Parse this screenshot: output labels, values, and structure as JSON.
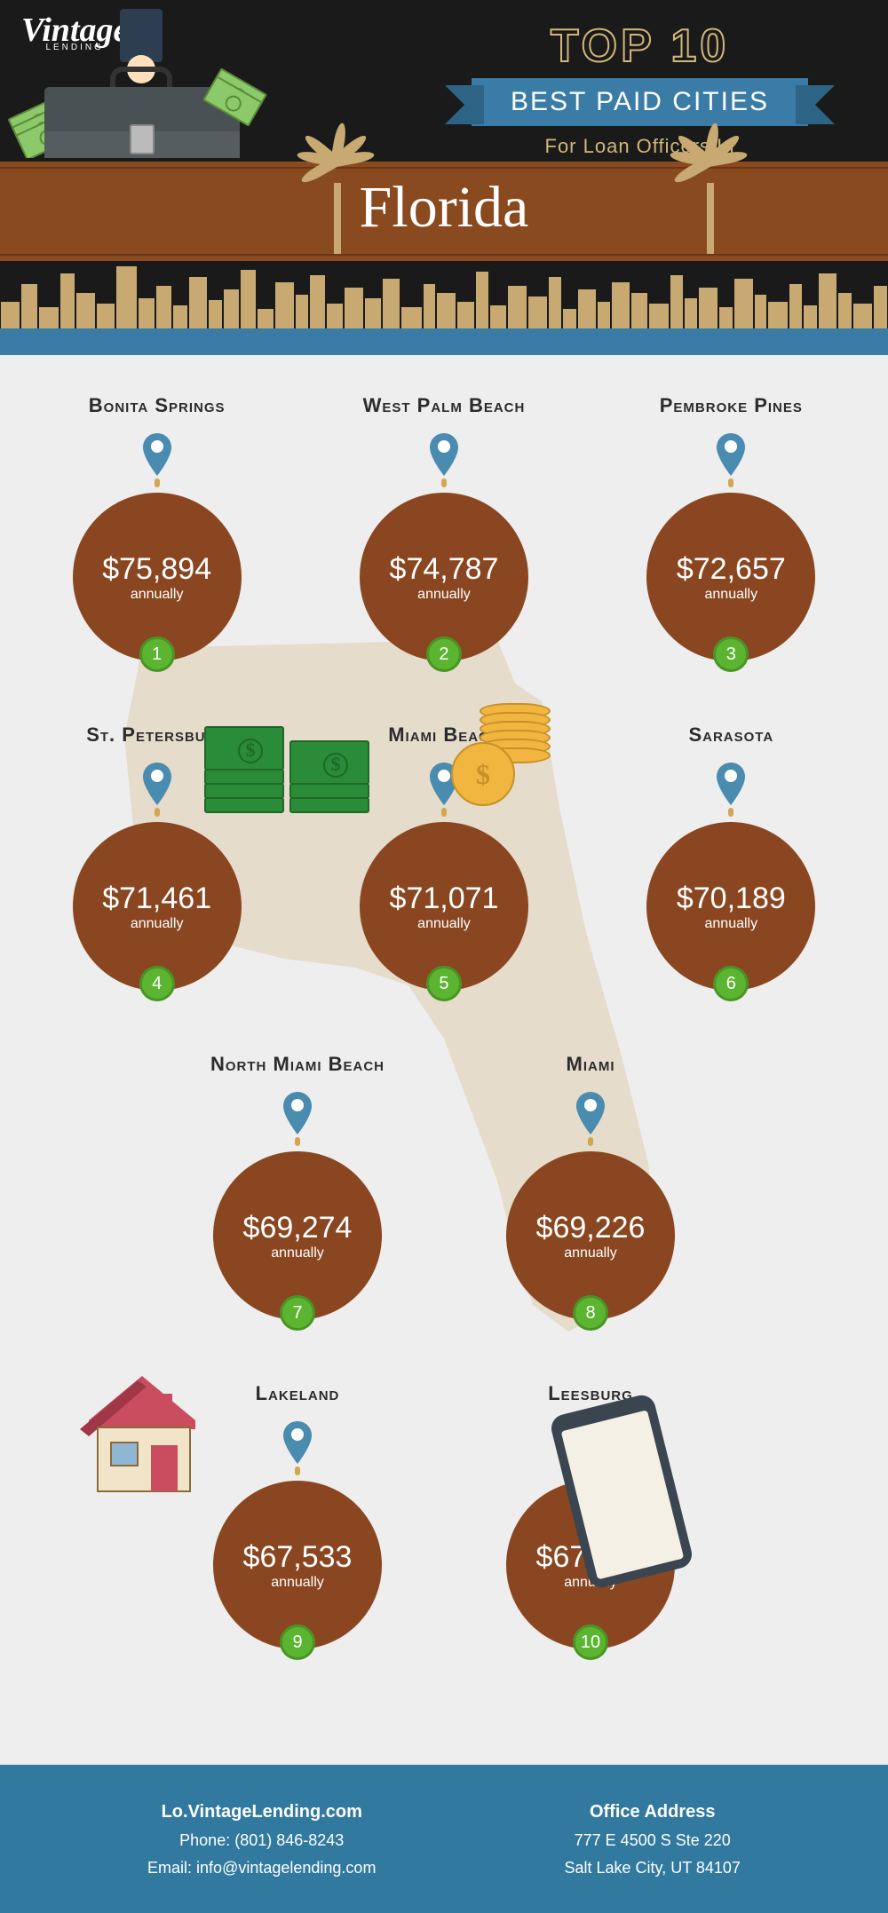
{
  "brand": {
    "name": "Vintage",
    "sub": "LENDING"
  },
  "title": {
    "top": "TOP 10",
    "ribbon": "BEST PAID CITIES",
    "sub": "For Loan Officers In",
    "state": "Florida"
  },
  "annually_label": "annually",
  "colors": {
    "header_bg": "#1a1a1a",
    "brown": "#8a4a1f",
    "blue": "#3a7ca5",
    "circle": "#8a4620",
    "rank": "#5cb531",
    "main_bg": "#eeeeee",
    "gold": "#d2b77a",
    "footer": "#3279a0",
    "fl_shape": "#e5dccb"
  },
  "cities": [
    {
      "name": "Bonita Springs",
      "salary": "$75,894",
      "rank": "1"
    },
    {
      "name": "West Palm Beach",
      "salary": "$74,787",
      "rank": "2"
    },
    {
      "name": "Pembroke Pines",
      "salary": "$72,657",
      "rank": "3"
    },
    {
      "name": "St. Petersburg",
      "salary": "$71,461",
      "rank": "4"
    },
    {
      "name": "Miami Beach",
      "salary": "$71,071",
      "rank": "5"
    },
    {
      "name": "Sarasota",
      "salary": "$70,189",
      "rank": "6"
    },
    {
      "name": "North Miami Beach",
      "salary": "$69,274",
      "rank": "7"
    },
    {
      "name": "Miami",
      "salary": "$69,226",
      "rank": "8"
    },
    {
      "name": "Lakeland",
      "salary": "$67,533",
      "rank": "9"
    },
    {
      "name": "Leesburg",
      "salary": "$67,260",
      "rank": "10"
    }
  ],
  "footer": {
    "left": {
      "site": "Lo.VintageLending.com",
      "phone": "Phone: (801) 846-8243",
      "email": "Email: info@vintagelending.com"
    },
    "right": {
      "hd": "Office Address",
      "l1": "777 E 4500 S Ste 220",
      "l2": "Salt Lake City, UT 84107"
    }
  },
  "layout": {
    "rows": [
      [
        0,
        1,
        2
      ],
      [
        3,
        4,
        5
      ],
      [
        6,
        7
      ],
      [
        8,
        9
      ]
    ]
  }
}
